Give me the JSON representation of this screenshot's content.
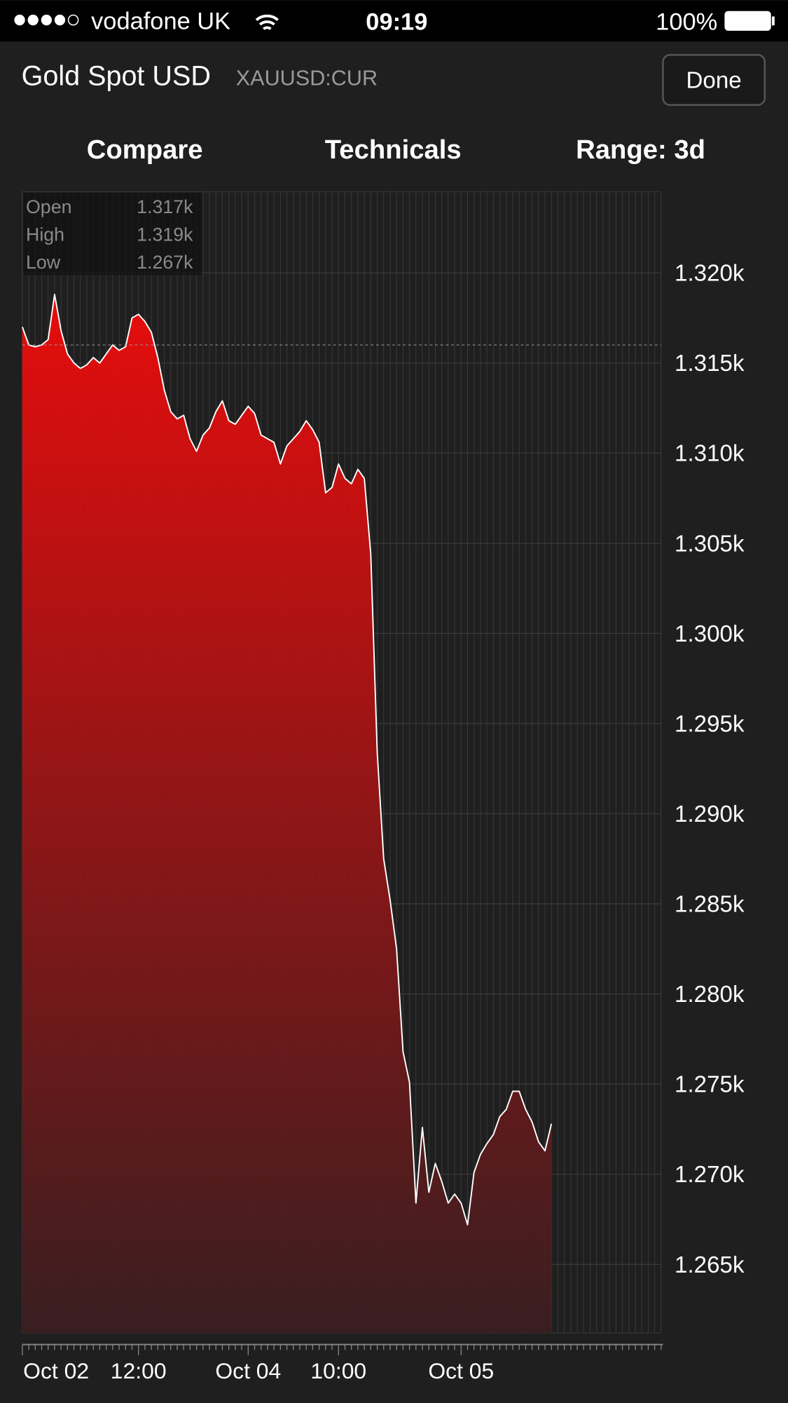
{
  "status_bar": {
    "carrier": "vodafone UK",
    "time": "09:19",
    "battery": "100%"
  },
  "header": {
    "title": "Gold Spot USD",
    "symbol": "XAUUSD:CUR",
    "done": "Done"
  },
  "tabs": [
    "Compare",
    "Technicals",
    "Range: 3d"
  ],
  "stats": [
    {
      "label": "Open",
      "value": "1.317k"
    },
    {
      "label": "High",
      "value": "1.319k"
    },
    {
      "label": "Low",
      "value": "1.267k"
    }
  ],
  "chart_data": {
    "type": "area",
    "categories": [
      "Oct 02",
      null,
      null,
      null,
      null,
      null,
      null,
      null,
      null,
      null,
      null,
      null,
      null,
      null,
      null,
      null,
      null,
      null,
      "12:00",
      null,
      null,
      null,
      null,
      null,
      null,
      null,
      null,
      null,
      null,
      null,
      null,
      null,
      null,
      null,
      null,
      "Oct 04",
      null,
      null,
      null,
      null,
      null,
      null,
      null,
      null,
      null,
      null,
      null,
      null,
      null,
      "10:00",
      null,
      null,
      null,
      null,
      null,
      null,
      null,
      null,
      null,
      null,
      null,
      null,
      null,
      null,
      null,
      null,
      null,
      null,
      "Oct 05",
      null,
      null,
      null,
      null,
      null,
      null,
      null,
      null,
      null,
      null,
      null,
      null,
      null,
      null,
      null,
      null,
      null,
      null,
      null,
      null,
      null,
      null,
      null,
      null,
      null,
      null,
      null,
      null,
      null,
      null,
      null
    ],
    "values": [
      1317.0,
      1316.0,
      1315.9,
      1316.0,
      1316.3,
      1318.8,
      1316.8,
      1315.5,
      1315.0,
      1314.7,
      1314.9,
      1315.3,
      1315.0,
      1315.5,
      1316.0,
      1315.7,
      1315.9,
      1317.5,
      1317.7,
      1317.3,
      1316.7,
      1315.3,
      1313.5,
      1312.3,
      1311.9,
      1312.1,
      1310.8,
      1310.1,
      1311.0,
      1311.4,
      1312.3,
      1312.9,
      1311.8,
      1311.6,
      1312.1,
      1312.6,
      1312.2,
      1311.0,
      1310.8,
      1310.6,
      1309.4,
      1310.4,
      1310.8,
      1311.2,
      1311.8,
      1311.3,
      1310.6,
      1307.8,
      1308.1,
      1309.4,
      1308.6,
      1308.3,
      1309.1,
      1308.6,
      1304.4,
      1293.4,
      1287.5,
      1285.2,
      1282.5,
      1276.8,
      1275.1,
      1268.4,
      1272.6,
      1269.0,
      1270.6,
      1269.6,
      1268.4,
      1268.9,
      1268.4,
      1267.2,
      1270.1,
      1271.1,
      1271.7,
      1272.2,
      1273.2,
      1273.6,
      1274.6,
      1274.6,
      1273.6,
      1272.9,
      1271.8,
      1271.3,
      1272.8,
      null,
      null,
      null,
      null,
      null,
      null,
      null,
      null,
      null,
      null,
      null,
      null,
      null,
      null,
      null,
      null,
      null
    ],
    "color": "#e80c0c",
    "line_color": "#ffffff",
    "dashed_line": 1316,
    "ylim": [
      1261.2,
      1324.5
    ],
    "yticks": [
      {
        "value": 1265,
        "label": "1.265k"
      },
      {
        "value": 1270,
        "label": "1.270k"
      },
      {
        "value": 1275,
        "label": "1.275k"
      },
      {
        "value": 1280,
        "label": "1.280k"
      },
      {
        "value": 1285,
        "label": "1.285k"
      },
      {
        "value": 1290,
        "label": "1.290k"
      },
      {
        "value": 1295,
        "label": "1.295k"
      },
      {
        "value": 1300,
        "label": "1.300k"
      },
      {
        "value": 1305,
        "label": "1.305k"
      },
      {
        "value": 1310,
        "label": "1.310k"
      },
      {
        "value": 1315,
        "label": "1.315k"
      },
      {
        "value": 1320,
        "label": "1.320k"
      }
    ],
    "grid": true
  }
}
